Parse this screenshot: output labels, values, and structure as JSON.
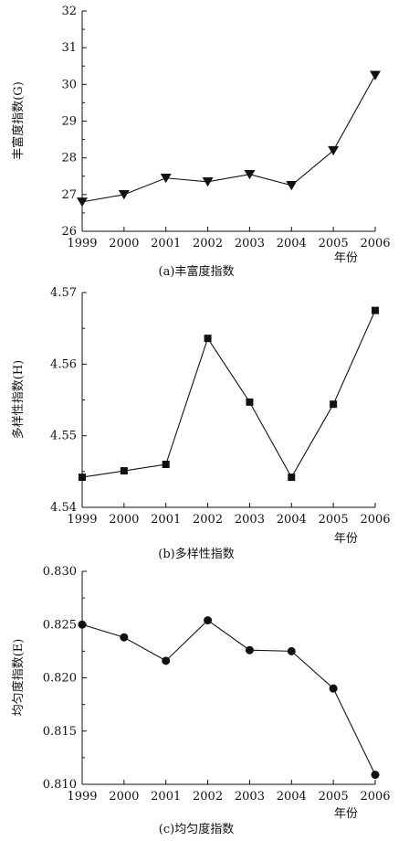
{
  "chart_data": [
    {
      "type": "line",
      "caption": "(a)丰富度指数",
      "ylabel": "丰富度指数(G)",
      "xlabel": "年份",
      "x": [
        "1999",
        "2000",
        "2001",
        "2002",
        "2003",
        "2004",
        "2005",
        "2006"
      ],
      "series": [
        {
          "values": [
            26.8,
            27.0,
            27.45,
            27.35,
            27.55,
            27.25,
            28.2,
            30.25
          ],
          "marker": "triangle-down"
        }
      ],
      "ylim": [
        26,
        32
      ],
      "yticks": [
        "26",
        "27",
        "28",
        "29",
        "30",
        "31",
        "32"
      ]
    },
    {
      "type": "line",
      "caption": "(b)多样性指数",
      "ylabel": "多样性指数(H)",
      "xlabel": "年份",
      "x": [
        "1999",
        "2000",
        "2001",
        "2002",
        "2003",
        "2004",
        "2005",
        "2006"
      ],
      "series": [
        {
          "values": [
            4.5442,
            4.5451,
            4.546,
            4.5636,
            4.5547,
            4.5442,
            4.5544,
            4.5675
          ],
          "marker": "square"
        }
      ],
      "ylim": [
        4.54,
        4.57
      ],
      "yticks": [
        "4.54",
        "4.55",
        "4.56",
        "4.57"
      ]
    },
    {
      "type": "line",
      "caption": "(c)均匀度指数",
      "ylabel": "均匀度指数(E)",
      "xlabel": "年份",
      "x": [
        "1999",
        "2000",
        "2001",
        "2002",
        "2003",
        "2004",
        "2005",
        "2006"
      ],
      "series": [
        {
          "values": [
            0.825,
            0.8238,
            0.8216,
            0.8254,
            0.8226,
            0.8225,
            0.819,
            0.8109
          ],
          "marker": "circle"
        }
      ],
      "ylim": [
        0.81,
        0.83
      ],
      "yticks": [
        "0.810",
        "0.815",
        "0.820",
        "0.825",
        "0.830"
      ]
    }
  ]
}
